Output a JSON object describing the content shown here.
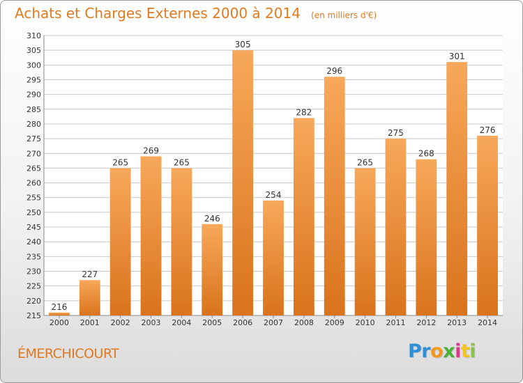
{
  "header": {
    "title": "Achats et Charges Externes 2000 à 2014",
    "subtitle": "(en milliers d'€)"
  },
  "footer": {
    "commune": "ÉMERCHICOURT",
    "logo_text": "Proxiti"
  },
  "colors": {
    "bar_top": "#f7a85a",
    "bar_bottom": "#d9731c",
    "title": "#e07a1f",
    "grid": "#c8c8c8"
  },
  "chart_data": {
    "type": "bar",
    "title": "Achats et Charges Externes 2000 à 2014",
    "subtitle": "(en milliers d'€)",
    "xlabel": "",
    "ylabel": "",
    "categories": [
      "2000",
      "2001",
      "2002",
      "2003",
      "2004",
      "2005",
      "2006",
      "2007",
      "2008",
      "2009",
      "2010",
      "2011",
      "2012",
      "2013",
      "2014"
    ],
    "values": [
      216,
      227,
      265,
      269,
      265,
      246,
      305,
      254,
      282,
      296,
      265,
      275,
      268,
      301,
      276
    ],
    "ylim": [
      215,
      310
    ],
    "ytick_step": 5,
    "grid": true,
    "legend": "none"
  }
}
